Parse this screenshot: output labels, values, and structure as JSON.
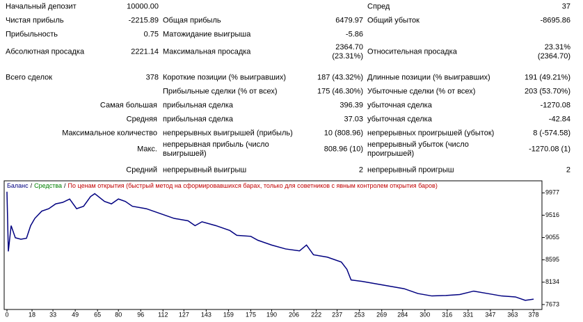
{
  "report": {
    "rows": [
      [
        "Начальный депозит",
        "10000.00",
        null,
        null,
        "Спред",
        "37"
      ],
      [
        "Чистая прибыль",
        "-2215.89",
        "Общая прибыль",
        "6479.97",
        "Общий убыток",
        "-8695.86"
      ],
      [
        "Прибыльность",
        "0.75",
        "Матожидание выигрыша",
        "-5.86",
        null,
        null
      ],
      [
        "Абсолютная просадка",
        "2221.14",
        "Максимальная просадка",
        "2364.70\n(23.31%)",
        "Относительная просадка",
        "23.31%\n(2364.70)"
      ],
      [
        "Всего сделок",
        "378",
        "Короткие позиции (% выигравших)",
        "187 (43.32%)",
        "Длинные позиции (% выигравших)",
        "191 (49.21%)"
      ],
      [
        null,
        null,
        "Прибыльные сделки (% от всех)",
        "175 (46.30%)",
        "Убыточные сделки (% от всех)",
        "203 (53.70%)"
      ],
      [
        "Самая большая",
        null,
        "прибыльная сделка",
        "396.39",
        "убыточная сделка",
        "-1270.08"
      ],
      [
        "Средняя",
        null,
        "прибыльная сделка",
        "37.03",
        "убыточная сделка",
        "-42.84"
      ],
      [
        "Максимальное количество",
        null,
        "непрерывных выигрышей (прибыль)",
        "10 (808.96)",
        "непрерывных проигрышей (убыток)",
        "8 (-574.58)"
      ],
      [
        "Макс.",
        null,
        "непрерывная прибыль (число выигрышей)",
        "808.96 (10)",
        "непрерывный убыток (число проигрышей)",
        "-1270.08 (1)"
      ],
      [
        "Средний",
        null,
        "непрерывный выигрыш",
        "2",
        "непрерывный проигрыш",
        "2"
      ]
    ]
  },
  "chart_data": {
    "type": "line",
    "series": [
      {
        "name": "Баланс",
        "color": "#000080",
        "values": [
          10000,
          8770,
          9300,
          9050,
          9020,
          9040,
          9300,
          9450,
          9600,
          9650,
          9750,
          9780,
          9850,
          9650,
          9700,
          9900,
          9960,
          9800,
          9750,
          9850,
          9800,
          9700,
          9650,
          9550,
          9450,
          9400,
          9300,
          9380,
          9300,
          9200,
          9100,
          9080,
          9000,
          8900,
          8820,
          8780,
          8900,
          8700,
          8650,
          8550,
          8400,
          8180,
          8150,
          8100,
          8050,
          8000,
          7900,
          7850,
          7860,
          7880,
          7950,
          7900,
          7850,
          7830,
          7760,
          7784.11
        ]
      }
    ],
    "x": [
      0,
      1,
      3,
      6,
      10,
      14,
      17,
      20,
      25,
      30,
      35,
      40,
      45,
      50,
      55,
      60,
      63,
      70,
      75,
      80,
      85,
      90,
      100,
      110,
      120,
      130,
      135,
      140,
      150,
      160,
      165,
      175,
      180,
      190,
      200,
      210,
      215,
      220,
      230,
      240,
      244,
      247,
      255,
      265,
      275,
      285,
      295,
      305,
      315,
      325,
      335,
      345,
      355,
      365,
      372,
      378
    ],
    "legend_separator": "/",
    "legend_extra": [
      {
        "text": "Средства",
        "color": "#008000"
      },
      {
        "text": "По ценам открытия (быстрый метод на сформировавшихся барах, только для советников с явным контролем открытия баров)",
        "color": "#c00000"
      }
    ],
    "xlim": [
      0,
      384
    ],
    "ylim": [
      7571,
      10225
    ],
    "xticks": [
      0,
      18,
      33,
      49,
      65,
      80,
      96,
      112,
      127,
      143,
      159,
      175,
      190,
      206,
      222,
      237,
      253,
      269,
      284,
      300,
      316,
      331,
      347,
      363,
      378
    ],
    "yticks": [
      7673,
      8134,
      8595,
      9055,
      9516,
      9977
    ]
  }
}
